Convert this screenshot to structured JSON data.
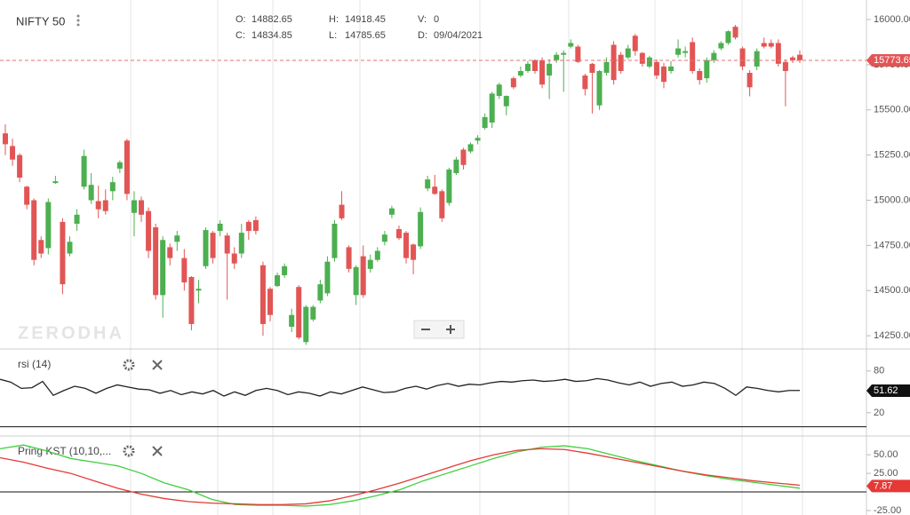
{
  "header": {
    "ohlc": [
      {
        "label": "O:",
        "value": "14882.65"
      },
      {
        "label": "H:",
        "value": "14918.45"
      },
      {
        "label": "V:",
        "value": "0"
      },
      {
        "label": "C:",
        "value": "14834.85"
      },
      {
        "label": "L:",
        "value": "14785.65"
      },
      {
        "label": "D:",
        "value": "09/04/2021"
      }
    ],
    "watermark": "ZERODHA"
  },
  "chart_data": [
    {
      "type": "candlestick",
      "title": "NIFTY 50",
      "up_color": "#4caf50",
      "down_color": "#e25555",
      "ylim": [
        14177,
        16108
      ],
      "yticks": [
        {
          "value": 14250,
          "label": "14250.00"
        },
        {
          "value": 14500,
          "label": "14500.00"
        },
        {
          "value": 14750,
          "label": "14750.00"
        },
        {
          "value": 15000,
          "label": "15000.00"
        },
        {
          "value": 15250,
          "label": "15250.00"
        },
        {
          "value": 15500,
          "label": "15500.00"
        },
        {
          "value": 15750,
          "label": "15750.00"
        },
        {
          "value": 16000,
          "label": "16000.00"
        }
      ],
      "last_value": 15773.65,
      "candles": [
        [
          15370,
          15420,
          15250,
          15310
        ],
        [
          15300,
          15340,
          15190,
          15225
        ],
        [
          15250,
          15260,
          15100,
          15125
        ],
        [
          15075,
          15080,
          14950,
          14975
        ],
        [
          15000,
          15010,
          14640,
          14670
        ],
        [
          14780,
          14800,
          14680,
          14705
        ],
        [
          14735,
          15010,
          14700,
          14990
        ],
        [
          15095,
          15135,
          15090,
          15105
        ],
        [
          14880,
          14900,
          14480,
          14535
        ],
        [
          14705,
          14800,
          14690,
          14770
        ],
        [
          14870,
          14950,
          14830,
          14920
        ],
        [
          15075,
          15280,
          15060,
          15245
        ],
        [
          15000,
          15150,
          14980,
          15085
        ],
        [
          14995,
          15080,
          14900,
          14950
        ],
        [
          15000,
          15060,
          14920,
          14940
        ],
        [
          15050,
          15130,
          15000,
          15100
        ],
        [
          15175,
          15220,
          15150,
          15210
        ],
        [
          15330,
          15340,
          15000,
          15035
        ],
        [
          14930,
          15050,
          14800,
          15000
        ],
        [
          15000,
          15020,
          14880,
          14920
        ],
        [
          14940,
          14960,
          14680,
          14720
        ],
        [
          14850,
          14870,
          14450,
          14475
        ],
        [
          14475,
          14800,
          14350,
          14780
        ],
        [
          14740,
          14760,
          14640,
          14680
        ],
        [
          14770,
          14830,
          14720,
          14805
        ],
        [
          14680,
          14730,
          14500,
          14545
        ],
        [
          14575,
          14580,
          14280,
          14315
        ],
        [
          14500,
          14560,
          14430,
          14510
        ],
        [
          14635,
          14850,
          14620,
          14835
        ],
        [
          14820,
          14830,
          14650,
          14680
        ],
        [
          14830,
          14890,
          14800,
          14870
        ],
        [
          14805,
          14820,
          14450,
          14705
        ],
        [
          14705,
          14740,
          14620,
          14650
        ],
        [
          14705,
          14870,
          14680,
          14820
        ],
        [
          14880,
          14890,
          14780,
          14830
        ],
        [
          14890,
          14910,
          14810,
          14830
        ],
        [
          14640,
          14660,
          14250,
          14315
        ],
        [
          14510,
          14520,
          14330,
          14365
        ],
        [
          14525,
          14600,
          14520,
          14585
        ],
        [
          14585,
          14650,
          14570,
          14635
        ],
        [
          14300,
          14400,
          14270,
          14365
        ],
        [
          14520,
          14530,
          14230,
          14240
        ],
        [
          14215,
          14420,
          14200,
          14410
        ],
        [
          14340,
          14420,
          14330,
          14410
        ],
        [
          14445,
          14560,
          14430,
          14535
        ],
        [
          14485,
          14690,
          14470,
          14660
        ],
        [
          14680,
          14890,
          14660,
          14870
        ],
        [
          14975,
          15050,
          14890,
          14900
        ],
        [
          14740,
          14750,
          14600,
          14620
        ],
        [
          14475,
          14640,
          14420,
          14630
        ],
        [
          14690,
          14750,
          14460,
          14475
        ],
        [
          14620,
          14700,
          14600,
          14670
        ],
        [
          14670,
          14740,
          14660,
          14720
        ],
        [
          14770,
          14830,
          14750,
          14810
        ],
        [
          14920,
          14970,
          14900,
          14955
        ],
        [
          14840,
          14860,
          14780,
          14790
        ],
        [
          14820,
          14830,
          14650,
          14680
        ],
        [
          14755,
          14760,
          14590,
          14670
        ],
        [
          14745,
          14960,
          14730,
          14935
        ],
        [
          15065,
          15135,
          15050,
          15115
        ],
        [
          15075,
          15140,
          15030,
          15035
        ],
        [
          15050,
          15060,
          14880,
          14900
        ],
        [
          14985,
          15180,
          14970,
          15170
        ],
        [
          15150,
          15240,
          15140,
          15225
        ],
        [
          15280,
          15290,
          15170,
          15195
        ],
        [
          15270,
          15320,
          15260,
          15310
        ],
        [
          15330,
          15360,
          15310,
          15345
        ],
        [
          15400,
          15480,
          15390,
          15460
        ],
        [
          15430,
          15600,
          15400,
          15590
        ],
        [
          15577,
          15650,
          15560,
          15640
        ],
        [
          15520,
          15580,
          15470,
          15577
        ],
        [
          15675,
          15685,
          15615,
          15625
        ],
        [
          15690,
          15740,
          15680,
          15715
        ],
        [
          15715,
          15770,
          15705,
          15755
        ],
        [
          15775,
          15780,
          15700,
          15715
        ],
        [
          15775,
          15790,
          15620,
          15640
        ],
        [
          15690,
          15780,
          15560,
          15755
        ],
        [
          15775,
          15820,
          15760,
          15805
        ],
        [
          15805,
          15830,
          15600,
          15815
        ],
        [
          15850,
          15890,
          15840,
          15870
        ],
        [
          15850,
          15860,
          15760,
          15765
        ],
        [
          15690,
          15700,
          15580,
          15615
        ],
        [
          15755,
          15760,
          15480,
          15705
        ],
        [
          15525,
          15720,
          15500,
          15715
        ],
        [
          15705,
          15790,
          15690,
          15765
        ],
        [
          15860,
          15880,
          15640,
          15665
        ],
        [
          15805,
          15820,
          15700,
          15715
        ],
        [
          15790,
          15860,
          15780,
          15840
        ],
        [
          15910,
          15920,
          15800,
          15825
        ],
        [
          15815,
          15820,
          15740,
          15755
        ],
        [
          15740,
          15800,
          15730,
          15790
        ],
        [
          15765,
          15780,
          15670,
          15690
        ],
        [
          15740,
          15760,
          15620,
          15655
        ],
        [
          15715,
          15770,
          15700,
          15740
        ],
        [
          15805,
          15890,
          15790,
          15840
        ],
        [
          15815,
          15850,
          15790,
          15825
        ],
        [
          15875,
          15900,
          15700,
          15715
        ],
        [
          15715,
          15730,
          15640,
          15665
        ],
        [
          15675,
          15790,
          15650,
          15775
        ],
        [
          15775,
          15830,
          15760,
          15815
        ],
        [
          15840,
          15880,
          15830,
          15870
        ],
        [
          15870,
          15940,
          15860,
          15935
        ],
        [
          15960,
          15970,
          15890,
          15900
        ],
        [
          15840,
          15850,
          15720,
          15740
        ],
        [
          15705,
          15720,
          15575,
          15625
        ],
        [
          15740,
          15840,
          15720,
          15825
        ],
        [
          15870,
          15900,
          15840,
          15850
        ],
        [
          15870,
          15890,
          15840,
          15850
        ],
        [
          15870,
          15890,
          15740,
          15755
        ],
        [
          15765,
          15780,
          15520,
          15715
        ],
        [
          15790,
          15800,
          15760,
          15775
        ],
        [
          15805,
          15830,
          15760,
          15775
        ]
      ]
    },
    {
      "type": "line",
      "title": "rsi (14)",
      "ylim": [
        -12,
        109
      ],
      "yticks": [
        20,
        80
      ],
      "last_value": 51.62,
      "badge_color": "#111",
      "series": [
        {
          "color": "#222",
          "values": [
            68,
            64,
            55,
            56,
            65,
            45,
            52,
            58,
            55,
            48,
            55,
            60,
            57,
            54,
            53,
            48,
            52,
            46,
            50,
            47,
            52,
            44,
            50,
            45,
            52,
            55,
            52,
            46,
            50,
            48,
            44,
            50,
            47,
            52,
            57,
            53,
            49,
            50,
            55,
            58,
            54,
            59,
            62,
            58,
            61,
            60,
            63,
            65,
            64,
            66,
            67,
            65,
            66,
            68,
            65,
            66,
            69,
            67,
            63,
            60,
            64,
            58,
            62,
            64,
            58,
            60,
            64,
            62,
            55,
            45,
            57,
            55,
            52,
            50,
            52,
            52
          ]
        }
      ]
    },
    {
      "type": "line",
      "title": "Pring KST (10,10,...",
      "ylim": [
        -31,
        74
      ],
      "yticks": [
        {
          "value": -25,
          "label": "-25.00"
        },
        {
          "value": 25,
          "label": "25.00"
        },
        {
          "value": 50,
          "label": "50.00"
        }
      ],
      "last_value": 7.87,
      "badge_color": "#e53935",
      "series": [
        {
          "color": "#3ecf3e",
          "values": [
            58,
            63,
            55,
            45,
            40,
            35,
            25,
            12,
            3,
            -10,
            -17,
            -18,
            -18,
            -19,
            -17,
            -12,
            -5,
            3,
            15,
            25,
            35,
            45,
            54,
            60,
            62,
            58,
            50,
            42,
            35,
            28,
            22,
            17,
            13,
            9,
            5
          ]
        },
        {
          "color": "#e53935",
          "values": [
            46,
            40,
            32,
            25,
            15,
            5,
            -3,
            -9,
            -13,
            -15,
            -16,
            -17,
            -17,
            -16,
            -12,
            -5,
            3,
            12,
            22,
            32,
            42,
            50,
            56,
            58,
            57,
            52,
            46,
            40,
            34,
            28,
            23,
            19,
            15,
            12,
            9
          ]
        }
      ]
    }
  ]
}
